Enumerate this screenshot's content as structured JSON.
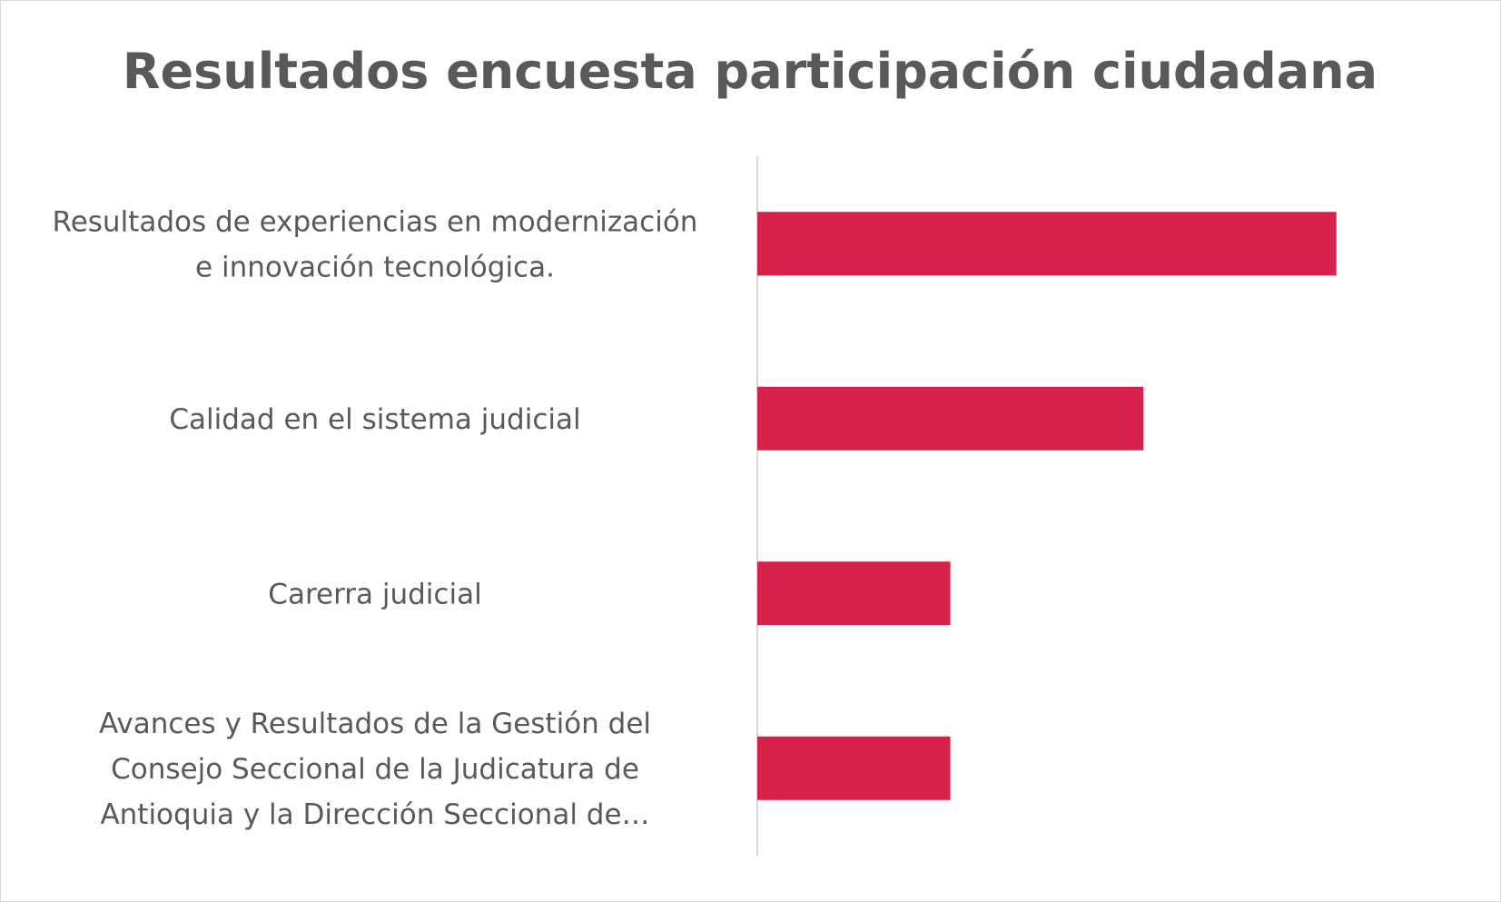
{
  "chart_data": {
    "type": "bar",
    "orientation": "horizontal",
    "title": "Resultados encuesta participación ciudadana",
    "xlabel": "",
    "ylabel": "",
    "categories": [
      [
        "Resultados de experiencias en modernización",
        "e innovación tecnológica."
      ],
      [
        "Calidad en el sistema judicial"
      ],
      [
        "Carerra judicial"
      ],
      [
        "Avances y Resultados de la Gestión del",
        "Consejo Seccional de la Judicatura de",
        "Antioquia y la Dirección Seccional de…"
      ]
    ],
    "values": [
      6,
      4,
      2,
      2
    ],
    "xlim": [
      0,
      7
    ],
    "grid": false,
    "legend": "none",
    "bar_color": "#d6214b",
    "axis_color": "#d9d9d9",
    "text_color": "#595959"
  }
}
